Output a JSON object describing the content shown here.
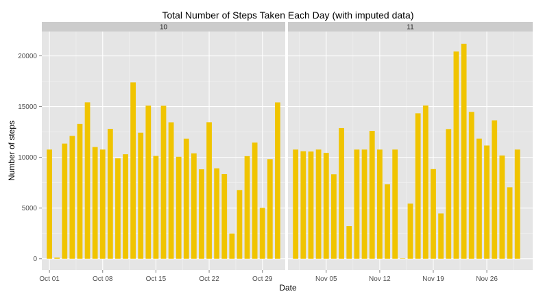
{
  "colors": {
    "bar": "#F0C400",
    "panel_bg": "#E5E5E5",
    "grid_major": "#FFFFFF",
    "grid_minor": "#F2F2F2",
    "strip_bg": "#CCCCCC",
    "tick_text": "#4D4D4D"
  },
  "chart_data": {
    "type": "bar",
    "title": "Total Number of Steps Taken Each Day (with imputed data)",
    "xlabel": "Date",
    "ylabel": "Number of steps",
    "ylim": [
      -1100,
      22400
    ],
    "y_ticks": [
      0,
      5000,
      10000,
      15000,
      20000
    ],
    "grid": true,
    "legend": "none",
    "facets": [
      {
        "label": "10",
        "x_ticks": [
          {
            "day": 1,
            "label": "Oct 01"
          },
          {
            "day": 8,
            "label": "Oct 08"
          },
          {
            "day": 15,
            "label": "Oct 15"
          },
          {
            "day": 22,
            "label": "Oct 22"
          },
          {
            "day": 29,
            "label": "Oct 29"
          }
        ],
        "days": [
          1,
          2,
          3,
          4,
          5,
          6,
          7,
          8,
          9,
          10,
          11,
          12,
          13,
          14,
          15,
          16,
          17,
          18,
          19,
          20,
          21,
          22,
          23,
          24,
          25,
          26,
          27,
          28,
          29,
          30,
          31
        ],
        "values": [
          10766,
          126,
          11352,
          12116,
          13294,
          15420,
          11015,
          10766,
          12811,
          9900,
          10304,
          17382,
          12426,
          15098,
          10139,
          15084,
          13452,
          10056,
          11829,
          10395,
          8821,
          13460,
          8918,
          8355,
          2492,
          6778,
          10119,
          11458,
          5018,
          9819,
          15414
        ]
      },
      {
        "label": "11",
        "x_ticks": [
          {
            "day": 5,
            "label": "Nov 05"
          },
          {
            "day": 12,
            "label": "Nov 12"
          },
          {
            "day": 19,
            "label": "Nov 19"
          },
          {
            "day": 26,
            "label": "Nov 26"
          }
        ],
        "days": [
          1,
          2,
          3,
          4,
          5,
          6,
          7,
          8,
          9,
          10,
          11,
          12,
          13,
          14,
          15,
          16,
          17,
          18,
          19,
          20,
          21,
          22,
          23,
          24,
          25,
          26,
          27,
          28,
          29,
          30
        ],
        "values": [
          10766,
          10600,
          10571,
          10766,
          10439,
          8334,
          12883,
          3219,
          10766,
          10766,
          12608,
          10765,
          7336,
          10766,
          41,
          5441,
          14339,
          15110,
          8841,
          4472,
          12787,
          20427,
          21194,
          14478,
          11834,
          11162,
          13646,
          10183,
          7047,
          10766
        ]
      }
    ]
  }
}
